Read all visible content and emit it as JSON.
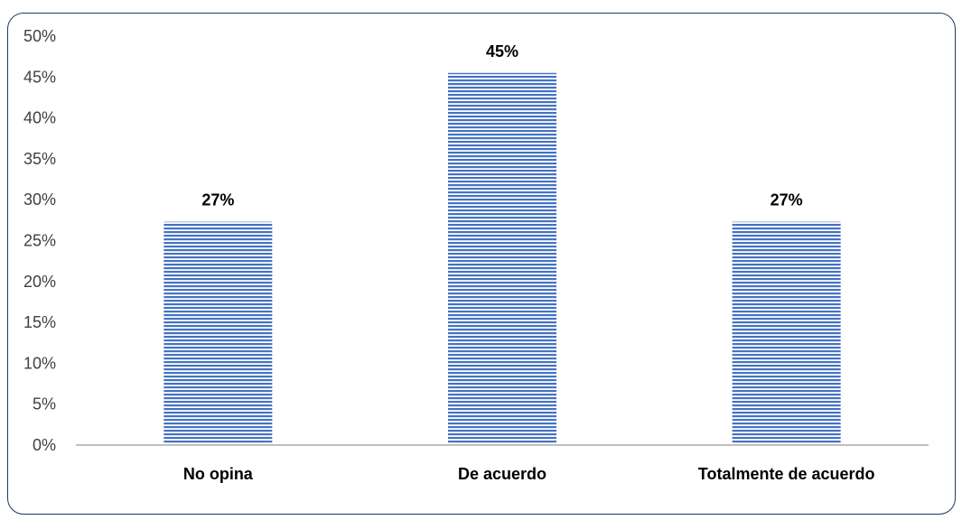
{
  "chart_data": {
    "type": "bar",
    "title": "",
    "xlabel": "",
    "ylabel": "",
    "categories": [
      "No opina",
      "De acuerdo",
      "Totalmente de acuerdo"
    ],
    "values": [
      27.3,
      45.5,
      27.3
    ],
    "data_labels": [
      "27%",
      "45%",
      "27%"
    ],
    "ylim": [
      0,
      50
    ],
    "yticks": [
      0,
      5,
      10,
      15,
      20,
      25,
      30,
      35,
      40,
      45,
      50
    ],
    "ytick_labels": [
      "0%",
      "5%",
      "10%",
      "15%",
      "20%",
      "25%",
      "30%",
      "35%",
      "40%",
      "45%",
      "50%"
    ],
    "grid": false,
    "legend": "none",
    "colors": {
      "bar_fill": "#4472c4",
      "bar_stripe": "#ffffff",
      "axis": "#bfbfbf",
      "frame": "#1f3864"
    }
  }
}
